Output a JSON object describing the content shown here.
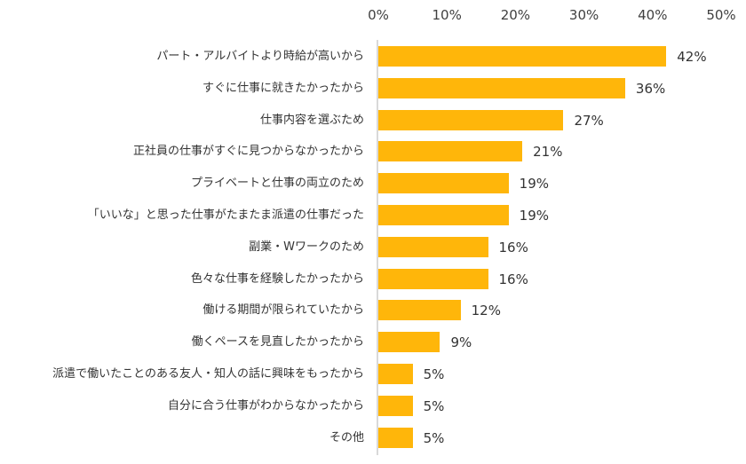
{
  "chart_data": {
    "type": "bar",
    "orientation": "horizontal",
    "title": "",
    "xlabel": "",
    "ylabel": "",
    "xlim": [
      0,
      50
    ],
    "x_ticks": [
      "0%",
      "10%",
      "20%",
      "30%",
      "40%",
      "50%"
    ],
    "grid": false,
    "legend": null,
    "bar_color": "#FFB60A",
    "categories": [
      "パート・アルバイトより時給が高いから",
      "すぐに仕事に就きたかったから",
      "仕事内容を選ぶため",
      "正社員の仕事がすぐに見つからなかったから",
      "プライベートと仕事の両立のため",
      "「いいな」と思った仕事がたまたま派遣の仕事だった",
      "副業・Wワークのため",
      "色々な仕事を経験したかったから",
      "働ける期間が限られていたから",
      "働くペースを見直したかったから",
      "派遣で働いたことのある友人・知人の話に興味をもったから",
      "自分に合う仕事がわからなかったから",
      "その他"
    ],
    "values": [
      42,
      36,
      27,
      21,
      19,
      19,
      16,
      16,
      12,
      9,
      5,
      5,
      5
    ],
    "value_labels": [
      "42%",
      "36%",
      "27%",
      "21%",
      "19%",
      "19%",
      "16%",
      "16%",
      "12%",
      "9%",
      "5%",
      "5%",
      "5%"
    ]
  }
}
